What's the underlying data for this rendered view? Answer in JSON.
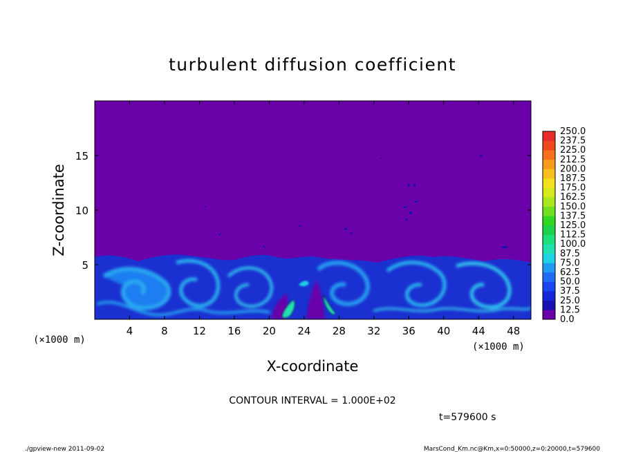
{
  "chart_data": {
    "type": "heatmap",
    "title": "turbulent diffusion coefficient",
    "xlabel": "X-coordinate",
    "ylabel": "Z-coordinate",
    "x_unit": "(×1000 m)",
    "y_unit": "(×1000 m)",
    "xlim": [
      0,
      50
    ],
    "ylim": [
      0,
      20
    ],
    "x_ticks": [
      4,
      8,
      12,
      16,
      20,
      24,
      28,
      32,
      36,
      40,
      44,
      48
    ],
    "y_ticks": [
      5,
      10,
      15
    ],
    "colorbar": {
      "levels": [
        "0.0",
        "12.5",
        "25.0",
        "37.5",
        "50.0",
        "62.5",
        "75.0",
        "87.5",
        "100.0",
        "112.5",
        "125.0",
        "137.5",
        "150.0",
        "162.5",
        "175.0",
        "187.5",
        "200.0",
        "212.5",
        "225.0",
        "237.5",
        "250.0"
      ],
      "colors": [
        "#6a00a8",
        "#1a10b0",
        "#1525d8",
        "#1a45f0",
        "#1e6cf5",
        "#1f9cf2",
        "#1fd2e6",
        "#20e0b0",
        "#1ee07a",
        "#1ed04a",
        "#30d820",
        "#70e020",
        "#a8e81e",
        "#d8e81e",
        "#f0e01e",
        "#f8c01e",
        "#f89a1e",
        "#f8701e",
        "#f0481e",
        "#e82c2c"
      ]
    },
    "contour_interval": "CONTOUR INTERVAL = 1.000E+02",
    "time_label": "t=579600  s",
    "background_value": 0.0
  },
  "footer": {
    "left": "./gpview-new   2011-09-02",
    "right": "MarsCond_Km.nc@Km,x=0:50000,z=0:20000,t=579600"
  },
  "colors": {
    "background_field": "#6a00a8"
  }
}
